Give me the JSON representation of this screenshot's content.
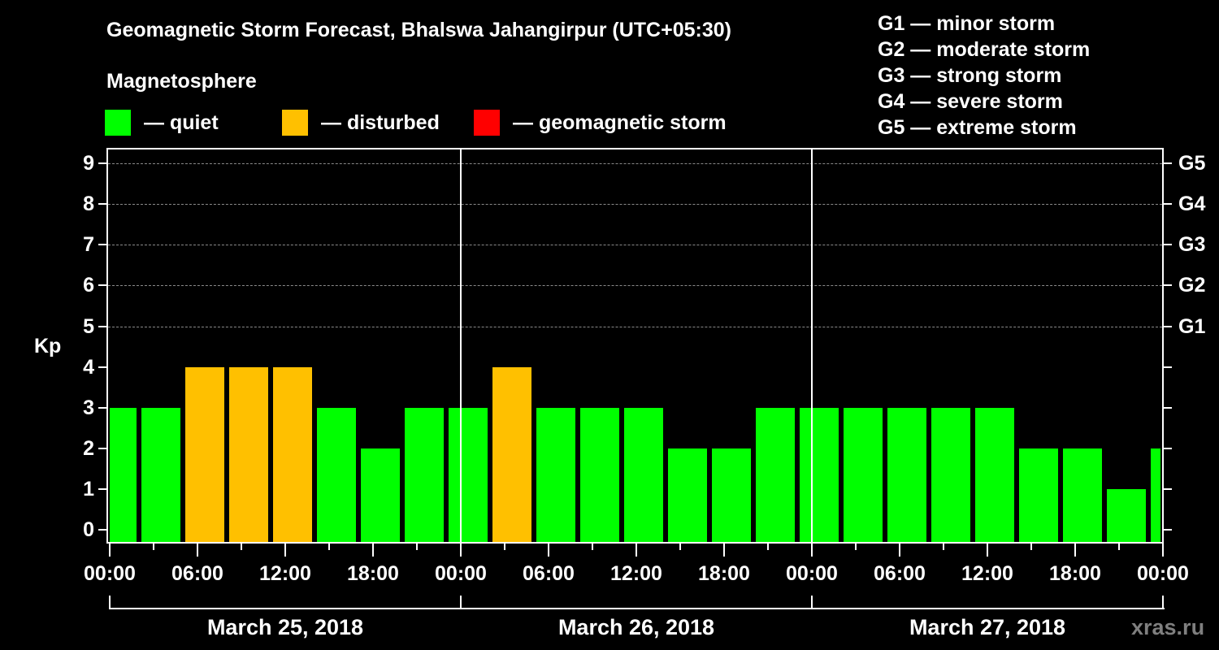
{
  "title": "Geomagnetic Storm Forecast, Bhalswa Jahangirpur (UTC+05:30)",
  "subtitle": "Magnetosphere",
  "legend": [
    {
      "label": "— quiet",
      "color": "#00ff00"
    },
    {
      "label": "— disturbed",
      "color": "#ffc000"
    },
    {
      "label": "— geomagnetic storm",
      "color": "#ff0000"
    }
  ],
  "g_scale_legend": [
    "G1 — minor storm",
    "G2 — moderate storm",
    "G3 — strong storm",
    "G4 — severe storm",
    "G5 — extreme storm"
  ],
  "y_axis_label": "Kp",
  "y_ticks": [
    "0",
    "1",
    "2",
    "3",
    "4",
    "5",
    "6",
    "7",
    "8",
    "9"
  ],
  "right_axis_labels": {
    "5": "G1",
    "6": "G2",
    "7": "G3",
    "8": "G4",
    "9": "G5"
  },
  "x_tick_labels": [
    "00:00",
    "06:00",
    "12:00",
    "18:00",
    "00:00",
    "06:00",
    "12:00",
    "18:00",
    "00:00",
    "06:00",
    "12:00",
    "18:00",
    "00:00"
  ],
  "dates": [
    "March 25, 2018",
    "March 26, 2018",
    "March 27, 2018"
  ],
  "watermark": "xras.ru",
  "colors": {
    "quiet": "#00ff00",
    "disturbed": "#ffc000",
    "storm": "#ff0000",
    "background": "#000000",
    "grid": "#8a8a8a"
  },
  "chart_data": {
    "type": "bar",
    "title": "Geomagnetic Storm Forecast, Bhalswa Jahangirpur (UTC+05:30)",
    "xlabel": "",
    "ylabel": "Kp",
    "ylim": [
      0,
      9
    ],
    "grid": true,
    "grid_lines_at": [
      5,
      6,
      7,
      8,
      9
    ],
    "secondary_y_labels": {
      "5": "G1",
      "6": "G2",
      "7": "G3",
      "8": "G4",
      "9": "G5"
    },
    "legend_position": "top",
    "interval_hours": 3,
    "categories": [
      "Mar 25 ~00:00",
      "Mar 25 ~03:00",
      "Mar 25 ~06:00",
      "Mar 25 ~09:00",
      "Mar 25 ~12:00",
      "Mar 25 ~15:00",
      "Mar 25 ~18:00",
      "Mar 25 ~21:00",
      "Mar 26 ~00:00",
      "Mar 26 ~03:00",
      "Mar 26 ~06:00",
      "Mar 26 ~09:00",
      "Mar 26 ~12:00",
      "Mar 26 ~15:00",
      "Mar 26 ~18:00",
      "Mar 26 ~21:00",
      "Mar 27 ~00:00",
      "Mar 27 ~03:00",
      "Mar 27 ~06:00",
      "Mar 27 ~09:00",
      "Mar 27 ~12:00",
      "Mar 27 ~15:00",
      "Mar 27 ~18:00",
      "Mar 27 ~21:00",
      "Mar 28 ~00:00"
    ],
    "values": [
      3,
      3,
      4,
      4,
      4,
      3,
      2,
      3,
      3,
      4,
      3,
      3,
      3,
      2,
      2,
      3,
      3,
      3,
      3,
      3,
      3,
      2,
      2,
      1,
      2
    ],
    "status": [
      "quiet",
      "quiet",
      "disturbed",
      "disturbed",
      "disturbed",
      "quiet",
      "quiet",
      "quiet",
      "quiet",
      "disturbed",
      "quiet",
      "quiet",
      "quiet",
      "quiet",
      "quiet",
      "quiet",
      "quiet",
      "quiet",
      "quiet",
      "quiet",
      "quiet",
      "quiet",
      "quiet",
      "quiet",
      "quiet"
    ]
  }
}
